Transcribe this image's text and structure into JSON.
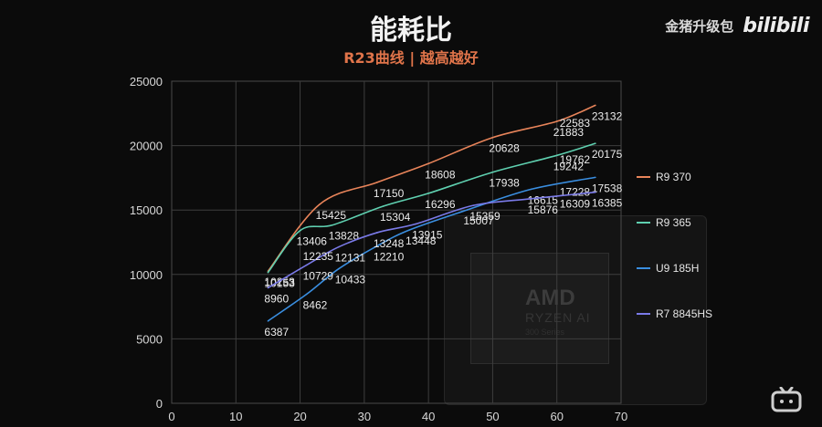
{
  "header": {
    "title": "能耗比",
    "subtitle": "R23曲线 | 越高越好"
  },
  "watermark": {
    "brand_text": "金猪升级包",
    "logo_text": "bilibili",
    "icon": "tv-icon"
  },
  "background_graphic": {
    "brand": "AMD",
    "line1": "RYZEN AI",
    "line2": "300 Series"
  },
  "chart_data": {
    "type": "line",
    "title": "能耗比",
    "subtitle": "R23曲线 | 越高越好",
    "xlabel": "",
    "ylabel": "",
    "xlim": [
      0,
      70
    ],
    "ylim": [
      0,
      25000
    ],
    "x_ticks": [
      0,
      10,
      20,
      30,
      40,
      50,
      60,
      70
    ],
    "y_ticks": [
      0,
      5000,
      10000,
      15000,
      20000,
      25000
    ],
    "grid": true,
    "legend_position": "right",
    "series": [
      {
        "name": "R9 370",
        "color": "#e8845a",
        "x": [
          15,
          23,
          32,
          40,
          50,
          60,
          66
        ],
        "y": [
          10253,
          15425,
          17150,
          18608,
          20628,
          21883,
          23132
        ],
        "point_labels": [
          "10253",
          "15425",
          "17150",
          "18608",
          "20628",
          "21883",
          "23132"
        ],
        "extra_labels": [
          {
            "x": 61,
            "y": 22583,
            "text": "22583"
          }
        ]
      },
      {
        "name": "R9 365",
        "color": "#5fd0b0",
        "x": [
          15,
          20,
          25,
          33,
          40,
          50,
          60,
          66
        ],
        "y": [
          10153,
          13406,
          13828,
          15304,
          16296,
          17938,
          19242,
          20175
        ],
        "point_labels": [
          "10153",
          "13406",
          "13828",
          "15304",
          "16296",
          "17938",
          "19242",
          "20175"
        ],
        "extra_labels": [
          {
            "x": 61,
            "y": 19762,
            "text": "19762"
          }
        ]
      },
      {
        "name": "U9 185H",
        "color": "#3a8ee0",
        "x": [
          15,
          21,
          26,
          32,
          37,
          46,
          56,
          66
        ],
        "y": [
          6387,
          8462,
          10433,
          12210,
          13448,
          15007,
          16615,
          17538
        ],
        "point_labels": [
          "6387",
          "8462",
          "10433",
          "12210",
          "13448",
          "15007",
          "16615",
          "17538"
        ],
        "extra_labels": [
          {
            "x": 61,
            "y": 17228,
            "text": "17228"
          }
        ]
      },
      {
        "name": "R7 8845HS",
        "color": "#7a7ae8",
        "x": [
          15,
          21,
          26,
          32,
          38,
          47,
          56,
          66
        ],
        "y": [
          8960,
          10729,
          12131,
          13248,
          13915,
          15359,
          15876,
          16385
        ],
        "point_labels": [
          "8960",
          "10729",
          "12131",
          "13248",
          "13915",
          "15359",
          "15876",
          "16385"
        ],
        "extra_labels": [
          {
            "x": 61,
            "y": 16309,
            "text": "16309"
          }
        ]
      }
    ],
    "loose_labels": [
      {
        "x": 21,
        "y": 12235,
        "text": "12235"
      }
    ]
  }
}
